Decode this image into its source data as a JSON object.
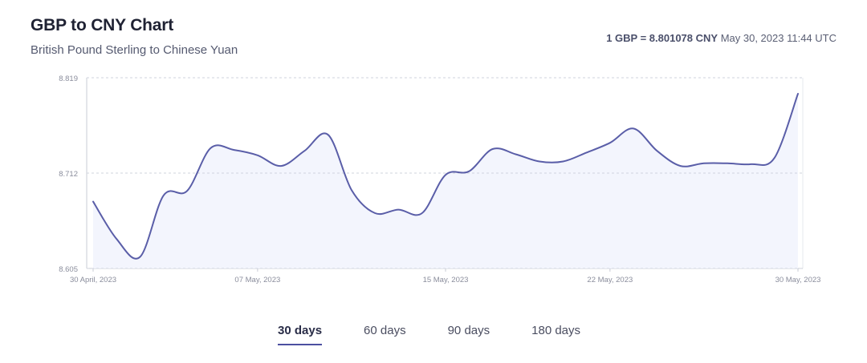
{
  "header": {
    "title": "GBP to CNY Chart",
    "subtitle": "British Pound Sterling to Chinese Yuan",
    "rate_main": "1 GBP = 8.801078 CNY",
    "rate_time": "May 30, 2023 11:44 UTC"
  },
  "tabs": [
    {
      "label": "30 days",
      "active": true
    },
    {
      "label": "60 days",
      "active": false
    },
    {
      "label": "90 days",
      "active": false
    },
    {
      "label": "180 days",
      "active": false
    }
  ],
  "colors": {
    "line": "#5a5ea8",
    "fill": "#f3f5fd",
    "grid": "#cfd3de",
    "axis": "#c9ccd6",
    "tick_text": "#8a8d9c"
  },
  "chart_data": {
    "type": "area",
    "title": "GBP to CNY Chart",
    "xlabel": "",
    "ylabel": "",
    "x_ticks": [
      "30 April, 2023",
      "07 May, 2023",
      "15 May, 2023",
      "22 May, 2023",
      "30 May, 2023"
    ],
    "y_ticks": [
      "8.605",
      "8.712",
      "8.819"
    ],
    "ylim": [
      8.605,
      8.819
    ],
    "grid": true,
    "series": [
      {
        "values": [
          {
            "x": "2023-04-30",
            "y": 8.68
          },
          {
            "x": "2023-05-01",
            "y": 8.638
          },
          {
            "x": "2023-05-02",
            "y": 8.618
          },
          {
            "x": "2023-05-03",
            "y": 8.687
          },
          {
            "x": "2023-05-04",
            "y": 8.692
          },
          {
            "x": "2023-05-05",
            "y": 8.74
          },
          {
            "x": "2023-05-06",
            "y": 8.738
          },
          {
            "x": "2023-05-07",
            "y": 8.732
          },
          {
            "x": "2023-05-08",
            "y": 8.72
          },
          {
            "x": "2023-05-09",
            "y": 8.737
          },
          {
            "x": "2023-05-10",
            "y": 8.755
          },
          {
            "x": "2023-05-11",
            "y": 8.693
          },
          {
            "x": "2023-05-12",
            "y": 8.667
          },
          {
            "x": "2023-05-13",
            "y": 8.671
          },
          {
            "x": "2023-05-14",
            "y": 8.667
          },
          {
            "x": "2023-05-15",
            "y": 8.71
          },
          {
            "x": "2023-05-16",
            "y": 8.714
          },
          {
            "x": "2023-05-17",
            "y": 8.739
          },
          {
            "x": "2023-05-18",
            "y": 8.733
          },
          {
            "x": "2023-05-19",
            "y": 8.725
          },
          {
            "x": "2023-05-20",
            "y": 8.725
          },
          {
            "x": "2023-05-21",
            "y": 8.735
          },
          {
            "x": "2023-05-22",
            "y": 8.746
          },
          {
            "x": "2023-05-23",
            "y": 8.762
          },
          {
            "x": "2023-05-24",
            "y": 8.737
          },
          {
            "x": "2023-05-25",
            "y": 8.72
          },
          {
            "x": "2023-05-26",
            "y": 8.723
          },
          {
            "x": "2023-05-27",
            "y": 8.723
          },
          {
            "x": "2023-05-28",
            "y": 8.722
          },
          {
            "x": "2023-05-29",
            "y": 8.729
          },
          {
            "x": "2023-05-30",
            "y": 8.801
          }
        ]
      }
    ]
  }
}
